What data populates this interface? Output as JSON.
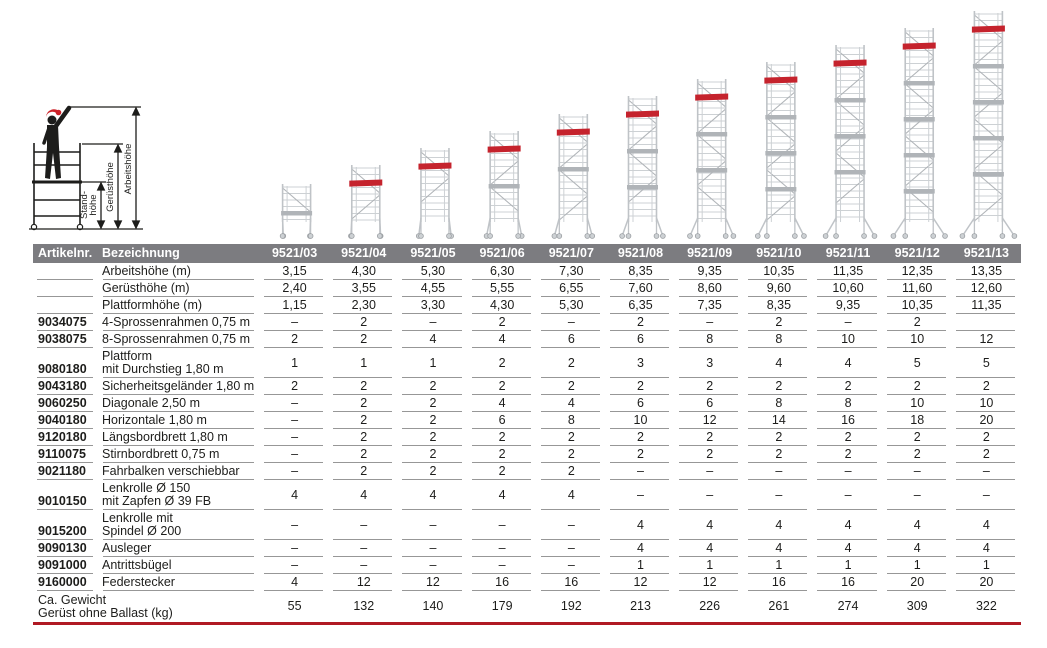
{
  "colors": {
    "header_bg": "#7c7c80",
    "accent_red": "#b01923",
    "tower_red": "#c5232d",
    "helmet_red": "#cc2027",
    "rule_gray": "#979797",
    "text": "#1d1d1b",
    "frame_gray": "#bfc3c7",
    "frame_light": "#cdd1d4",
    "deck_gray": "#b0b4b8"
  },
  "diagram": {
    "labels": {
      "arbeitshoehe": "Arbeitshöhe",
      "geruesthoehe": "Gerüsthöhe",
      "standhoehe_line1": "Stand-",
      "standhoehe_line2": "höhe"
    }
  },
  "towers": {
    "heights_m": [
      3.15,
      4.3,
      5.3,
      6.3,
      7.3,
      8.35,
      9.35,
      10.35,
      11.35,
      12.35,
      13.35
    ],
    "red_band": [
      false,
      true,
      true,
      true,
      true,
      true,
      true,
      true,
      true,
      true,
      true
    ]
  },
  "table": {
    "header": {
      "artikelnr": "Artikelnr.",
      "bezeichnung": "Bezeichnung",
      "columns": [
        "9521/03",
        "9521/04",
        "9521/05",
        "9521/06",
        "9521/07",
        "9521/08",
        "9521/09",
        "9521/10",
        "9521/11",
        "9521/12",
        "9521/13"
      ]
    },
    "rows": [
      {
        "artnr": "",
        "label": "Arbeitshöhe (m)",
        "label2": "",
        "values": [
          "3,15",
          "4,30",
          "5,30",
          "6,30",
          "7,30",
          "8,35",
          "9,35",
          "10,35",
          "11,35",
          "12,35",
          "13,35"
        ]
      },
      {
        "artnr": "",
        "label": "Gerüsthöhe (m)",
        "label2": "",
        "values": [
          "2,40",
          "3,55",
          "4,55",
          "5,55",
          "6,55",
          "7,60",
          "8,60",
          "9,60",
          "10,60",
          "11,60",
          "12,60"
        ]
      },
      {
        "artnr": "",
        "label": "Plattformhöhe (m)",
        "label2": "",
        "values": [
          "1,15",
          "2,30",
          "3,30",
          "4,30",
          "5,30",
          "6,35",
          "7,35",
          "8,35",
          "9,35",
          "10,35",
          "11,35"
        ]
      },
      {
        "artnr": "9034075",
        "label": "4-Sprossenrahmen 0,75 m",
        "label2": "",
        "values": [
          "–",
          "2",
          "–",
          "2",
          "–",
          "2",
          "–",
          "2",
          "–",
          "2",
          ""
        ]
      },
      {
        "artnr": "9038075",
        "label": "8-Sprossenrahmen 0,75 m",
        "label2": "",
        "values": [
          "2",
          "2",
          "4",
          "4",
          "6",
          "6",
          "8",
          "8",
          "10",
          "10",
          "12"
        ]
      },
      {
        "artnr": "9080180",
        "label": "Plattform",
        "label2": "mit Durchstieg 1,80 m",
        "values": [
          "1",
          "1",
          "1",
          "2",
          "2",
          "3",
          "3",
          "4",
          "4",
          "5",
          "5"
        ]
      },
      {
        "artnr": "9043180",
        "label": "Sicherheitsgeländer 1,80 m",
        "label2": "",
        "values": [
          "2",
          "2",
          "2",
          "2",
          "2",
          "2",
          "2",
          "2",
          "2",
          "2",
          "2"
        ]
      },
      {
        "artnr": "9060250",
        "label": "Diagonale 2,50 m",
        "label2": "",
        "values": [
          "–",
          "2",
          "2",
          "4",
          "4",
          "6",
          "6",
          "8",
          "8",
          "10",
          "10"
        ]
      },
      {
        "artnr": "9040180",
        "label": "Horizontale 1,80 m",
        "label2": "",
        "values": [
          "–",
          "2",
          "2",
          "6",
          "8",
          "10",
          "12",
          "14",
          "16",
          "18",
          "20"
        ]
      },
      {
        "artnr": "9120180",
        "label": "Längsbordbrett 1,80 m",
        "label2": "",
        "values": [
          "–",
          "2",
          "2",
          "2",
          "2",
          "2",
          "2",
          "2",
          "2",
          "2",
          "2"
        ]
      },
      {
        "artnr": "9110075",
        "label": "Stirnbordbrett 0,75 m",
        "label2": "",
        "values": [
          "–",
          "2",
          "2",
          "2",
          "2",
          "2",
          "2",
          "2",
          "2",
          "2",
          "2"
        ]
      },
      {
        "artnr": "9021180",
        "label": "Fahrbalken verschiebbar",
        "label2": "",
        "values": [
          "–",
          "2",
          "2",
          "2",
          "2",
          "–",
          "–",
          "–",
          "–",
          "–",
          "–"
        ]
      },
      {
        "artnr": "9010150",
        "label": "Lenkrolle Ø 150",
        "label2": "mit Zapfen Ø 39 FB",
        "values": [
          "4",
          "4",
          "4",
          "4",
          "4",
          "–",
          "–",
          "–",
          "–",
          "–",
          "–"
        ]
      },
      {
        "artnr": "9015200",
        "label": "Lenkrolle mit",
        "label2": "Spindel Ø 200",
        "values": [
          "–",
          "–",
          "–",
          "–",
          "–",
          "4",
          "4",
          "4",
          "4",
          "4",
          "4"
        ]
      },
      {
        "artnr": "9090130",
        "label": "Ausleger",
        "label2": "",
        "values": [
          "–",
          "–",
          "–",
          "–",
          "–",
          "4",
          "4",
          "4",
          "4",
          "4",
          "4"
        ]
      },
      {
        "artnr": "9091000",
        "label": "Antrittsbügel",
        "label2": "",
        "values": [
          "–",
          "–",
          "–",
          "–",
          "–",
          "1",
          "1",
          "1",
          "1",
          "1",
          "1"
        ]
      },
      {
        "artnr": "9160000",
        "label": "Federstecker",
        "label2": "",
        "values": [
          "4",
          "12",
          "12",
          "16",
          "16",
          "12",
          "12",
          "16",
          "16",
          "20",
          "20"
        ]
      }
    ],
    "footer": {
      "label": "Ca. Gewicht",
      "label2": "Gerüst ohne Ballast (kg)",
      "values": [
        "55",
        "132",
        "140",
        "179",
        "192",
        "213",
        "226",
        "261",
        "274",
        "309",
        "322"
      ]
    }
  }
}
